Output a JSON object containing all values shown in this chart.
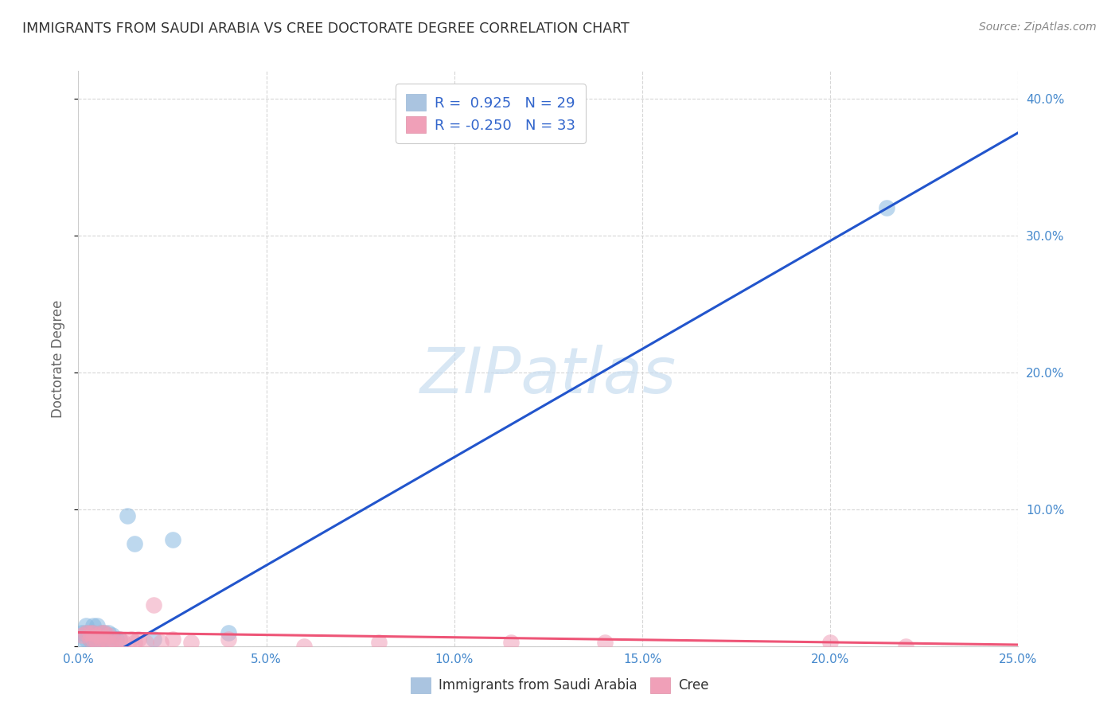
{
  "title": "IMMIGRANTS FROM SAUDI ARABIA VS CREE DOCTORATE DEGREE CORRELATION CHART",
  "source": "Source: ZipAtlas.com",
  "ylabel": "Doctorate Degree",
  "xlim": [
    0.0,
    0.25
  ],
  "ylim": [
    0.0,
    0.42
  ],
  "xticks": [
    0.0,
    0.05,
    0.1,
    0.15,
    0.2,
    0.25
  ],
  "yticks": [
    0.0,
    0.1,
    0.2,
    0.3,
    0.4
  ],
  "xtick_labels": [
    "0.0%",
    "5.0%",
    "10.0%",
    "15.0%",
    "20.0%",
    "25.0%"
  ],
  "ytick_labels": [
    "",
    "10.0%",
    "20.0%",
    "30.0%",
    "40.0%"
  ],
  "legend_items": [
    {
      "label": "Immigrants from Saudi Arabia",
      "color": "#aac4e0",
      "R": "0.925",
      "N": "29"
    },
    {
      "label": "Cree",
      "color": "#f0a0b8",
      "R": "-0.250",
      "N": "33"
    }
  ],
  "blue_scatter_x": [
    0.001,
    0.001,
    0.002,
    0.002,
    0.002,
    0.003,
    0.003,
    0.003,
    0.004,
    0.004,
    0.004,
    0.005,
    0.005,
    0.005,
    0.006,
    0.006,
    0.007,
    0.007,
    0.008,
    0.008,
    0.009,
    0.01,
    0.011,
    0.013,
    0.015,
    0.02,
    0.025,
    0.04,
    0.215
  ],
  "blue_scatter_y": [
    0.005,
    0.01,
    0.005,
    0.01,
    0.015,
    0.005,
    0.01,
    0.005,
    0.005,
    0.01,
    0.015,
    0.003,
    0.008,
    0.015,
    0.005,
    0.01,
    0.005,
    0.01,
    0.005,
    0.01,
    0.008,
    0.005,
    0.005,
    0.095,
    0.075,
    0.005,
    0.078,
    0.01,
    0.32
  ],
  "pink_scatter_x": [
    0.001,
    0.002,
    0.003,
    0.003,
    0.004,
    0.004,
    0.005,
    0.005,
    0.006,
    0.006,
    0.007,
    0.007,
    0.008,
    0.008,
    0.009,
    0.01,
    0.011,
    0.012,
    0.014,
    0.015,
    0.016,
    0.018,
    0.02,
    0.022,
    0.025,
    0.03,
    0.04,
    0.06,
    0.08,
    0.115,
    0.14,
    0.2,
    0.22
  ],
  "pink_scatter_y": [
    0.008,
    0.01,
    0.005,
    0.01,
    0.005,
    0.01,
    0.003,
    0.008,
    0.005,
    0.01,
    0.005,
    0.01,
    0.003,
    0.008,
    0.005,
    0.003,
    0.005,
    0.003,
    0.005,
    0.003,
    0.005,
    0.003,
    0.03,
    0.003,
    0.005,
    0.003,
    0.005,
    0.0,
    0.003,
    0.003,
    0.003,
    0.003,
    0.0
  ],
  "blue_line_x": [
    0.0,
    0.25
  ],
  "blue_line_y": [
    -0.02,
    0.375
  ],
  "pink_line_x": [
    0.0,
    0.25
  ],
  "pink_line_y": [
    0.01,
    0.001
  ],
  "watermark": "ZIPatlas",
  "background_color": "#ffffff",
  "grid_color": "#cccccc",
  "title_color": "#333333",
  "blue_scatter_color": "#88b8e0",
  "pink_scatter_color": "#f0a0b8",
  "blue_line_color": "#2255cc",
  "pink_line_color": "#ee5577"
}
